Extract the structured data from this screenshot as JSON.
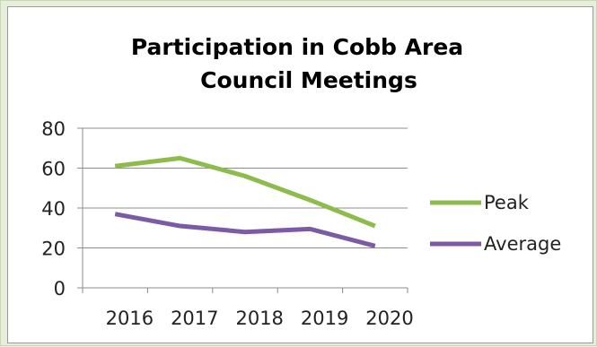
{
  "chart_data": {
    "type": "line",
    "title_lines": [
      "Participation in Cobb Area",
      "Council Meetings"
    ],
    "x_ticks": [
      "2016",
      "2017",
      "2018",
      "2019",
      "2020"
    ],
    "x": [
      2015.5,
      2016.5,
      2017.5,
      2018.5,
      2019.5
    ],
    "xlim": [
      2015,
      2020
    ],
    "ylim": [
      0,
      80
    ],
    "y_ticks": [
      "0",
      "20",
      "40",
      "60",
      "80"
    ],
    "grid": true,
    "legend_position": "right",
    "series": [
      {
        "name": "Peak",
        "color": "#8dbb4c",
        "values": [
          61,
          65,
          56,
          44,
          31
        ]
      },
      {
        "name": "Average",
        "color": "#7c5ba6",
        "values": [
          37,
          31,
          28,
          29.5,
          21
        ]
      }
    ]
  }
}
